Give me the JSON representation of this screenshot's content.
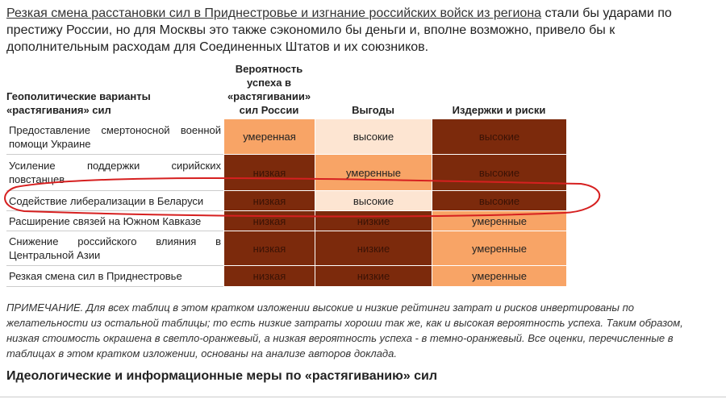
{
  "intro": {
    "link": "Резкая смена расстановки сил в Приднестровье и изгнание российских войск из региона",
    "text": "стали бы ударами по престижу России, но для Москвы это также сэкономило бы деньги и, вполне возможно, привело бы к дополнительным расходам для Соединенных Штатов и их союзников."
  },
  "table": {
    "header": [
      "Геополитические варианты «растягивания» сил",
      "Вероятность успеха в «растягивании» сил России",
      "Выгоды",
      "Издержки и риски"
    ],
    "rows": [
      [
        {
          "text": "Предоставление смертоносной военной помощи Украине"
        },
        {
          "text": "умеренная",
          "color": "#f8a466"
        },
        {
          "text": "высокие",
          "color": "#fde5d2"
        },
        {
          "text": "высокие",
          "color": "#7c2a0c"
        }
      ],
      [
        {
          "text": "Усиление поддержки сирийских повстанцев"
        },
        {
          "text": "низкая",
          "color": "#7c2a0c"
        },
        {
          "text": "умеренные",
          "color": "#f8a466"
        },
        {
          "text": "высокие",
          "color": "#7c2a0c"
        }
      ],
      [
        {
          "text": "Содействие либерализации в Беларуси"
        },
        {
          "text": "низкая",
          "color": "#7c2a0c"
        },
        {
          "text": "высокие",
          "color": "#fde5d2"
        },
        {
          "text": "высокие",
          "color": "#7c2a0c"
        }
      ],
      [
        {
          "text": "Расширение связей на Южном Кавказе"
        },
        {
          "text": "низкая",
          "color": "#7c2a0c"
        },
        {
          "text": "низкие",
          "color": "#7c2a0c"
        },
        {
          "text": "умеренные",
          "color": "#f8a466"
        }
      ],
      [
        {
          "text": "Снижение российского влияния в Центральной Азии"
        },
        {
          "text": "низкая",
          "color": "#7c2a0c"
        },
        {
          "text": "низкие",
          "color": "#7c2a0c"
        },
        {
          "text": "умеренные",
          "color": "#f8a466"
        }
      ],
      [
        {
          "text": "Резкая смена сил в Приднестровье"
        },
        {
          "text": "низкая",
          "color": "#7c2a0c"
        },
        {
          "text": "низкие",
          "color": "#7c2a0c"
        },
        {
          "text": "умеренные",
          "color": "#f8a466"
        }
      ]
    ]
  },
  "note": "ПРИМЕЧАНИЕ. Для всех таблиц в этом кратком изложении высокие и низкие рейтинги затрат и рисков инвертированы по желательности из остальной таблицы; то есть низкие затраты хороши так же, как и высокая вероятность успеха. Таким образом, низкая стоимость окрашена в светло-оранжевый, а низкая вероятность успеха - в темно-оранжевый. Все оценки, перечисленные в таблицах в этом кратком изложении, основаны на анализе авторов доклада.",
  "heading": "Идеологические и информационные меры по «растягиванию» сил"
}
